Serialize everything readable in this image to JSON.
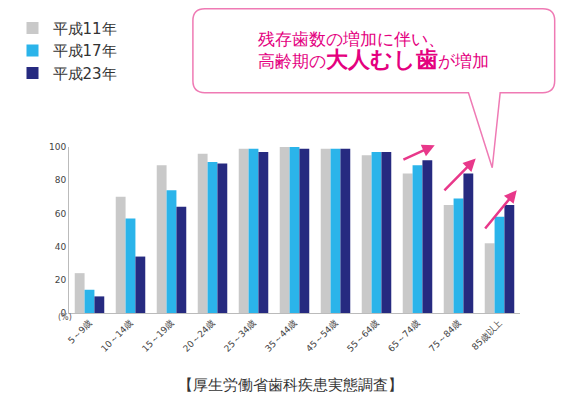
{
  "chart_data": {
    "type": "bar",
    "title": "【厚生労働省歯科疾患実態調査】",
    "categories": [
      "5～9歳",
      "10～14歳",
      "15～19歳",
      "20～24歳",
      "25～34歳",
      "35～44歳",
      "45～54歳",
      "55～64歳",
      "65～74歳",
      "75～84歳",
      "85歳以上"
    ],
    "series": [
      {
        "name": "平成11年",
        "color": "#c9c9c9",
        "values": [
          24,
          70,
          89,
          96,
          99,
          100,
          99,
          95,
          84,
          65,
          42
        ]
      },
      {
        "name": "平成17年",
        "color": "#2bb4ea",
        "values": [
          14,
          57,
          74,
          91,
          99,
          100,
          99,
          97,
          89,
          69,
          58
        ]
      },
      {
        "name": "平成23年",
        "color": "#262a80",
        "values": [
          10,
          34,
          64,
          90,
          97,
          99,
          99,
          97,
          92,
          84,
          65
        ]
      }
    ],
    "ylabel": "(%)",
    "ylim": [
      0,
      100
    ],
    "yticks": [
      0,
      20,
      40,
      60,
      80,
      100
    ],
    "grid": false,
    "legend": "upper left",
    "annotations": [
      {
        "lines": [
          [
            "残存歯数の増加に伴い、"
          ],
          [
            "高齢期の",
            "大人むし歯",
            "が増加"
          ]
        ]
      }
    ]
  }
}
